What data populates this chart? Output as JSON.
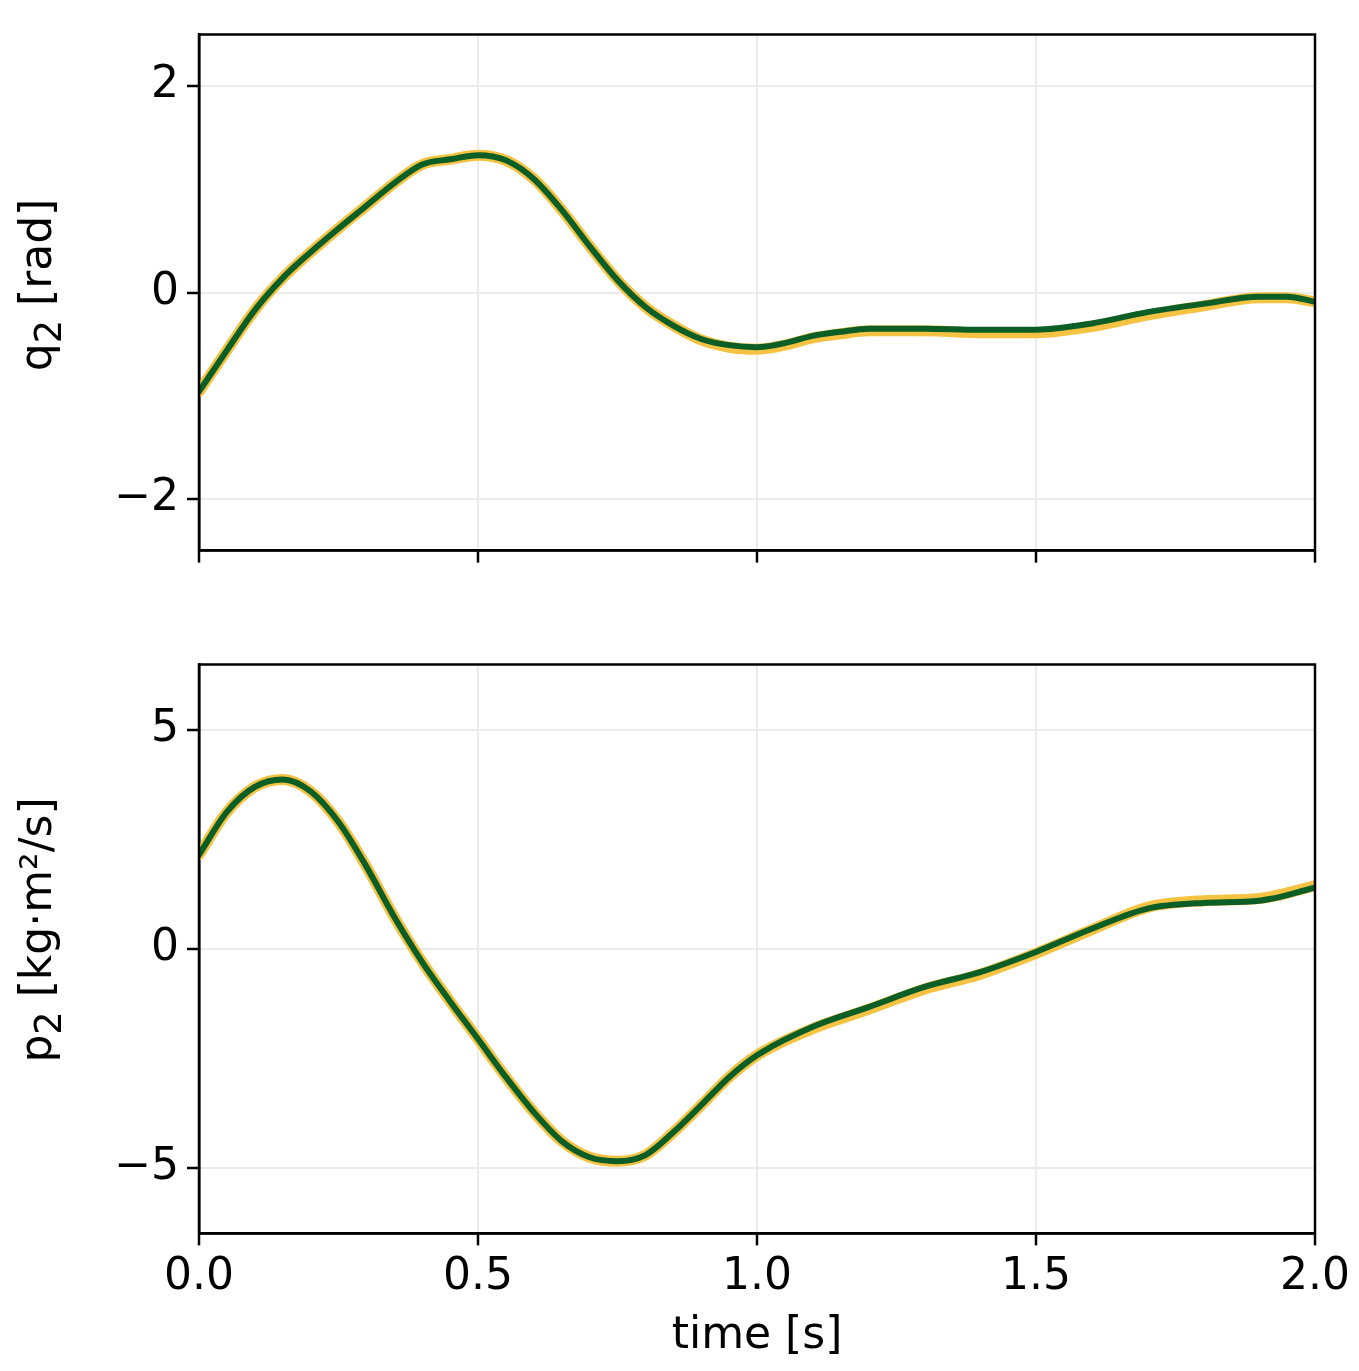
{
  "chart_data": [
    {
      "type": "line",
      "ylabel": "q$_{2}$ [rad]",
      "xlim": [
        0,
        2
      ],
      "xticks": [
        0,
        0.5,
        1,
        1.5,
        2
      ],
      "ylim": [
        -2.5,
        2.5
      ],
      "yticks": [
        {
          "value": -2,
          "label": "−2"
        },
        0,
        2
      ],
      "grid": true,
      "tick_labels": "y",
      "x": [
        0,
        0.05,
        0.1,
        0.15,
        0.2,
        0.25,
        0.3,
        0.35,
        0.4,
        0.45,
        0.5,
        0.55,
        0.6,
        0.65,
        0.7,
        0.75,
        0.8,
        0.85,
        0.9,
        0.95,
        1.0,
        1.05,
        1.1,
        1.15,
        1.2,
        1.3,
        1.4,
        1.5,
        1.6,
        1.7,
        1.8,
        1.9,
        1.95,
        2.0
      ],
      "series": [
        {
          "color": "#f5c242",
          "values": [
            -0.96,
            -0.56,
            -0.17,
            0.14,
            0.39,
            0.62,
            0.84,
            1.06,
            1.24,
            1.29,
            1.33,
            1.28,
            1.1,
            0.8,
            0.45,
            0.12,
            -0.14,
            -0.32,
            -0.46,
            -0.53,
            -0.55,
            -0.51,
            -0.44,
            -0.4,
            -0.37,
            -0.37,
            -0.39,
            -0.39,
            -0.33,
            -0.22,
            -0.13,
            -0.05,
            -0.05,
            -0.09
          ]
        },
        {
          "color": "#0b5e25",
          "values": [
            -0.96,
            -0.56,
            -0.17,
            0.14,
            0.39,
            0.62,
            0.84,
            1.06,
            1.24,
            1.29,
            1.33,
            1.28,
            1.1,
            0.8,
            0.45,
            0.12,
            -0.14,
            -0.32,
            -0.45,
            -0.51,
            -0.53,
            -0.49,
            -0.42,
            -0.38,
            -0.35,
            -0.35,
            -0.36,
            -0.36,
            -0.3,
            -0.19,
            -0.11,
            -0.04,
            -0.04,
            -0.09
          ]
        }
      ]
    },
    {
      "type": "line",
      "ylabel": "p$_{2}$ [kg·m²/s]",
      "xlabel": "time [s]",
      "xlim": [
        0,
        2
      ],
      "xticks": [
        {
          "value": 0,
          "label": "0.0"
        },
        0.5,
        {
          "value": 1,
          "label": "1.0"
        },
        1.5,
        {
          "value": 2,
          "label": "2.0"
        }
      ],
      "ylim": [
        -6.5,
        6.5
      ],
      "yticks": [
        {
          "value": -5,
          "label": "−5"
        },
        0,
        5
      ],
      "grid": true,
      "x": [
        0,
        0.05,
        0.1,
        0.15,
        0.2,
        0.25,
        0.3,
        0.35,
        0.4,
        0.45,
        0.5,
        0.55,
        0.6,
        0.65,
        0.7,
        0.75,
        0.8,
        0.85,
        0.9,
        0.95,
        1.0,
        1.1,
        1.2,
        1.3,
        1.4,
        1.5,
        1.6,
        1.7,
        1.8,
        1.9,
        2.0
      ],
      "series": [
        {
          "color": "#f5c242",
          "values": [
            2.15,
            3.13,
            3.7,
            3.87,
            3.6,
            2.9,
            1.88,
            0.73,
            -0.3,
            -1.2,
            -2.06,
            -2.93,
            -3.73,
            -4.39,
            -4.76,
            -4.85,
            -4.71,
            -4.19,
            -3.57,
            -2.93,
            -2.43,
            -1.82,
            -1.38,
            -0.92,
            -0.58,
            -0.1,
            0.44,
            0.95,
            1.1,
            1.15,
            1.44
          ]
        },
        {
          "color": "#0b5e25",
          "values": [
            2.15,
            3.13,
            3.7,
            3.87,
            3.6,
            2.9,
            1.88,
            0.73,
            -0.3,
            -1.2,
            -2.06,
            -2.93,
            -3.73,
            -4.39,
            -4.76,
            -4.85,
            -4.71,
            -4.19,
            -3.57,
            -2.93,
            -2.43,
            -1.78,
            -1.33,
            -0.87,
            -0.53,
            -0.07,
            0.46,
            0.92,
            1.05,
            1.1,
            1.4
          ]
        }
      ]
    }
  ]
}
